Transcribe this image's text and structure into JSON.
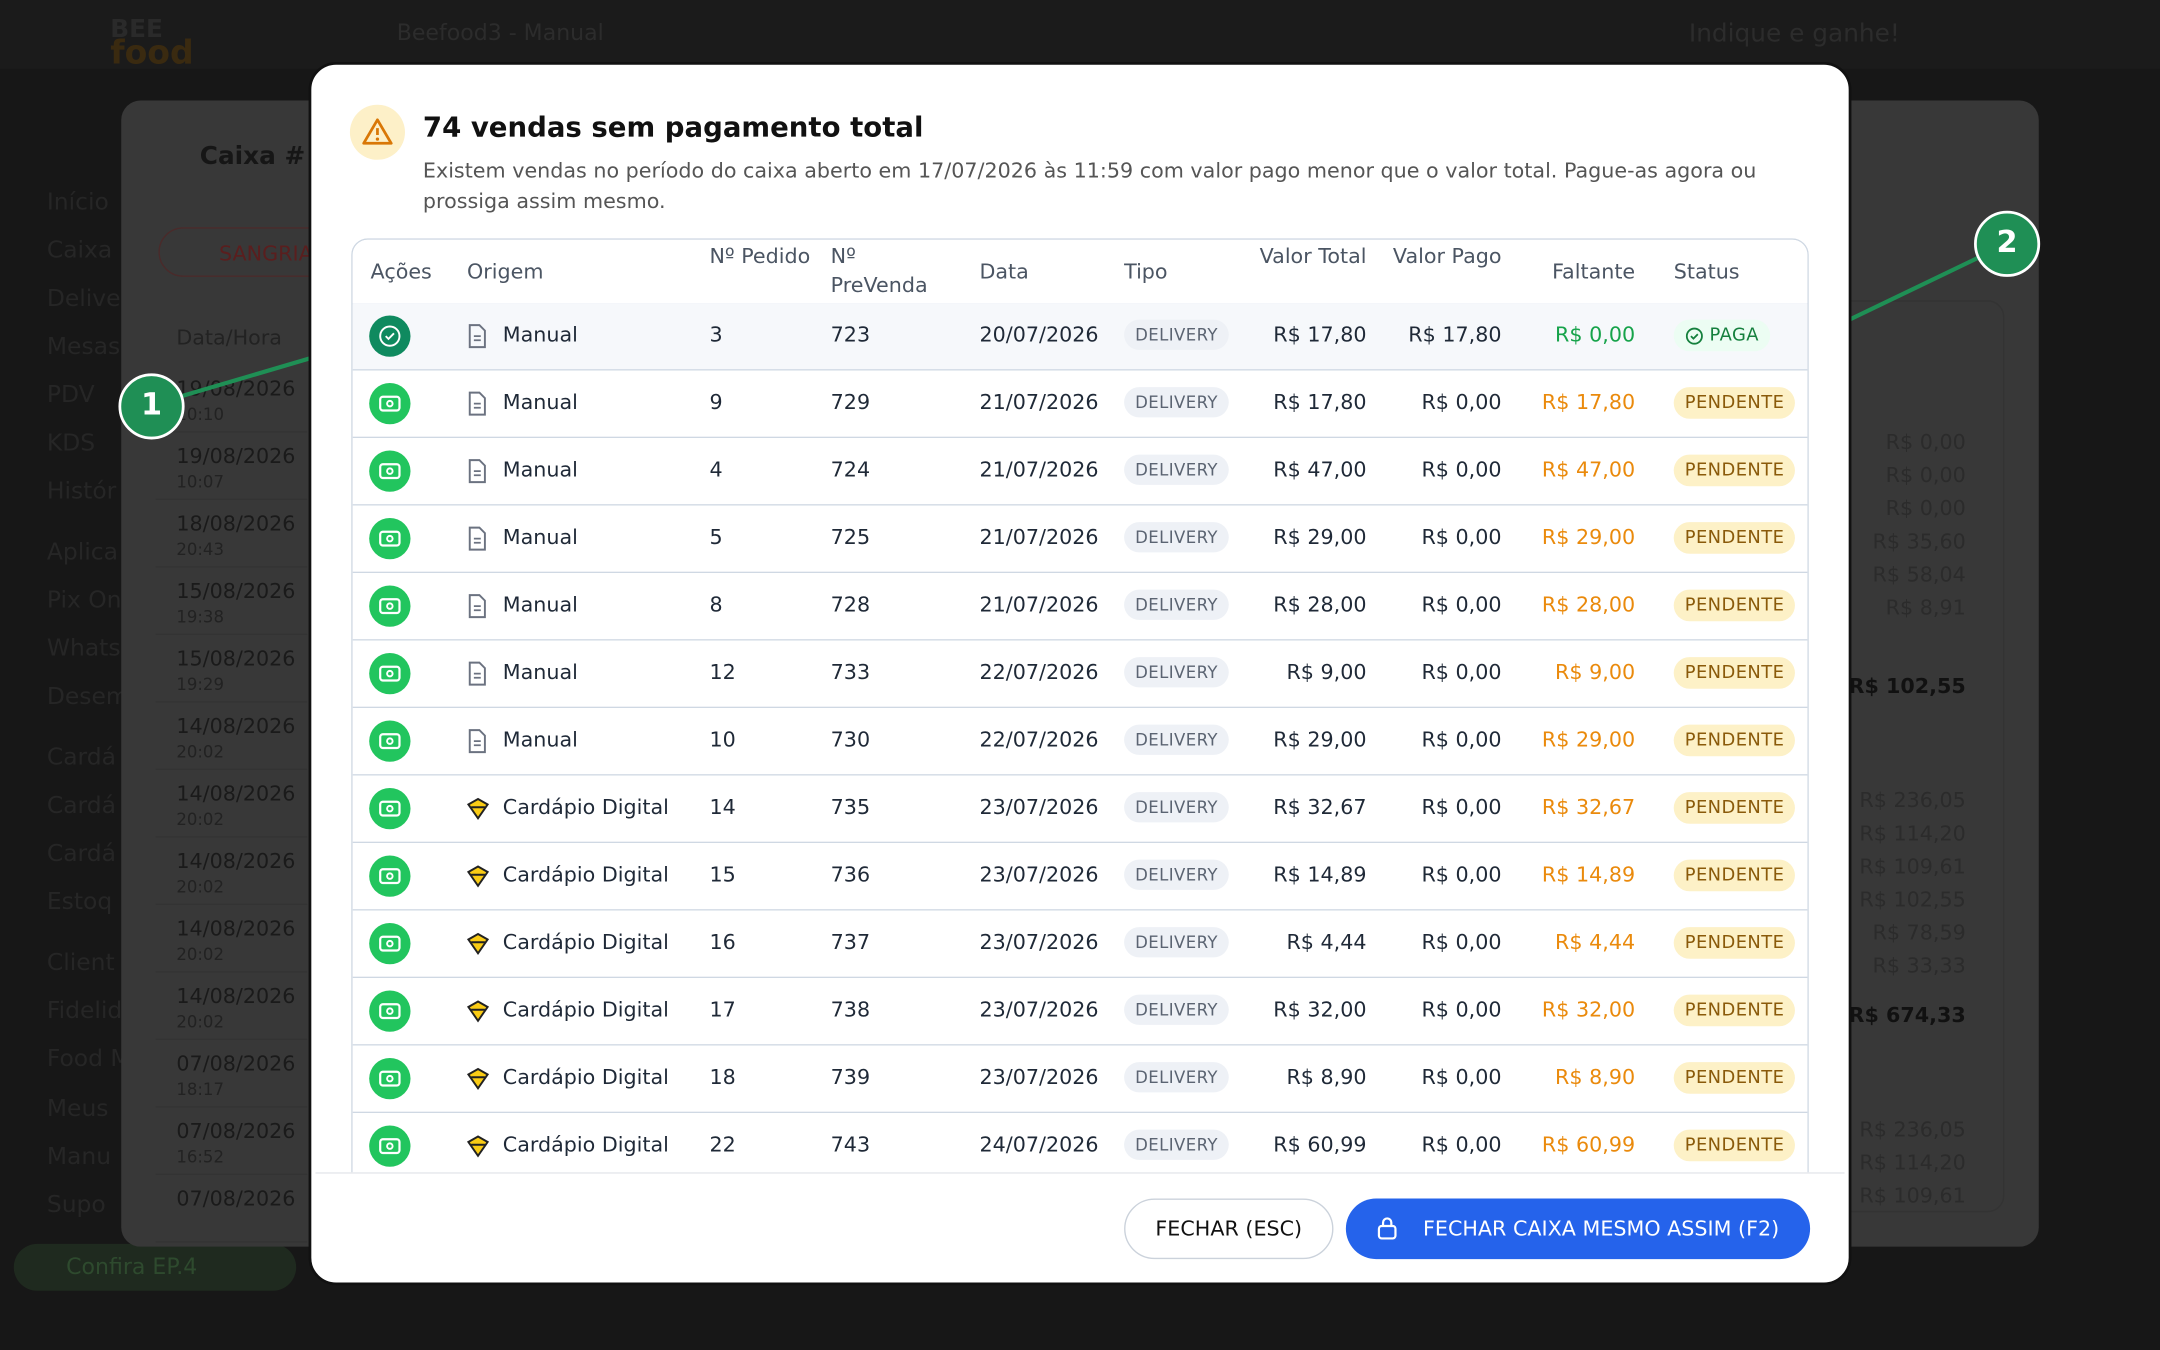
{
  "background": {
    "logo_top": "BEE",
    "logo_bottom": "food",
    "store": "Beefood3 - Manual",
    "referral": "Indique e ganhe!",
    "sidebar": [
      "Início",
      "Caixa",
      "Delive",
      "Mesas",
      "PDV",
      "KDS",
      "Histór",
      "Aplica",
      "Pix On",
      "Whats",
      "Desem",
      "Cardá",
      "Cardá",
      "Cardá",
      "Estoq",
      "Client",
      "Fidelid",
      "Food M",
      "Meus",
      "Manu",
      "Supo"
    ],
    "promo": "Confira EP.4",
    "cash_title": "Caixa # - c",
    "sangria": "SANGRIA",
    "date_header": "Data/Hora",
    "dates": [
      {
        "date": "19/08/2026",
        "time": "10:10"
      },
      {
        "date": "19/08/2026",
        "time": "10:07"
      },
      {
        "date": "18/08/2026",
        "time": "20:43"
      },
      {
        "date": "15/08/2026",
        "time": "19:38"
      },
      {
        "date": "15/08/2026",
        "time": "19:29"
      },
      {
        "date": "14/08/2026",
        "time": "20:02"
      },
      {
        "date": "14/08/2026",
        "time": "20:02"
      },
      {
        "date": "14/08/2026",
        "time": "20:02"
      },
      {
        "date": "14/08/2026",
        "time": "20:02"
      },
      {
        "date": "14/08/2026",
        "time": "20:02"
      },
      {
        "date": "07/08/2026",
        "time": "18:17"
      },
      {
        "date": "07/08/2026",
        "time": "16:52"
      },
      {
        "date": "07/08/2026"
      }
    ],
    "amounts": [
      "R$ 0,00",
      "R$ 0,00",
      "R$ 0,00",
      "R$ 35,60",
      "R$ 58,04",
      "R$ 8,91",
      "R$ 102,55",
      "R$ 236,05",
      "R$ 114,20",
      "R$ 109,61",
      "R$ 102,55",
      "R$ 78,59",
      "R$ 33,33",
      "R$ 674,33",
      "R$ 236,05",
      "R$ 114,20",
      "R$ 109,61"
    ]
  },
  "dialog": {
    "title": "74 vendas sem pagamento total",
    "message": "Existem vendas no período do caixa aberto em 17/07/2026 às 11:59 com valor pago menor que o valor total. Pague-as agora ou prossiga assim mesmo.",
    "table": {
      "headers": [
        "Ações",
        "Origem",
        "Nº Pedido",
        "Nº PreVenda",
        "Data",
        "Tipo",
        "Valor Total",
        "Valor Pago",
        "Faltante",
        "Status"
      ],
      "rows": [
        [
          "Manual",
          "3",
          "723",
          "20/07/2026",
          "DELIVERY",
          "R$ 17,80",
          "R$ 17,80",
          "R$ 0,00",
          "PAGA"
        ],
        [
          "Manual",
          "9",
          "729",
          "21/07/2026",
          "DELIVERY",
          "R$ 17,80",
          "R$ 0,00",
          "R$ 17,80",
          "PENDENTE"
        ],
        [
          "Manual",
          "4",
          "724",
          "21/07/2026",
          "DELIVERY",
          "R$ 47,00",
          "R$ 0,00",
          "R$ 47,00",
          "PENDENTE"
        ],
        [
          "Manual",
          "5",
          "725",
          "21/07/2026",
          "DELIVERY",
          "R$ 29,00",
          "R$ 0,00",
          "R$ 29,00",
          "PENDENTE"
        ],
        [
          "Manual",
          "8",
          "728",
          "21/07/2026",
          "DELIVERY",
          "R$ 28,00",
          "R$ 0,00",
          "R$ 28,00",
          "PENDENTE"
        ],
        [
          "Manual",
          "12",
          "733",
          "22/07/2026",
          "DELIVERY",
          "R$ 9,00",
          "R$ 0,00",
          "R$ 9,00",
          "PENDENTE"
        ],
        [
          "Manual",
          "10",
          "730",
          "22/07/2026",
          "DELIVERY",
          "R$ 29,00",
          "R$ 0,00",
          "R$ 29,00",
          "PENDENTE"
        ],
        [
          "Cardápio Digital",
          "14",
          "735",
          "23/07/2026",
          "DELIVERY",
          "R$ 32,67",
          "R$ 0,00",
          "R$ 32,67",
          "PENDENTE"
        ],
        [
          "Cardápio Digital",
          "15",
          "736",
          "23/07/2026",
          "DELIVERY",
          "R$ 14,89",
          "R$ 0,00",
          "R$ 14,89",
          "PENDENTE"
        ],
        [
          "Cardápio Digital",
          "16",
          "737",
          "23/07/2026",
          "DELIVERY",
          "R$ 4,44",
          "R$ 0,00",
          "R$ 4,44",
          "PENDENTE"
        ],
        [
          "Cardápio Digital",
          "17",
          "738",
          "23/07/2026",
          "DELIVERY",
          "R$ 32,00",
          "R$ 0,00",
          "R$ 32,00",
          "PENDENTE"
        ],
        [
          "Cardápio Digital",
          "18",
          "739",
          "23/07/2026",
          "DELIVERY",
          "R$ 8,90",
          "R$ 0,00",
          "R$ 8,90",
          "PENDENTE"
        ],
        [
          "Cardápio Digital",
          "22",
          "743",
          "24/07/2026",
          "DELIVERY",
          "R$ 60,99",
          "R$ 0,00",
          "R$ 60,99",
          "PENDENTE"
        ]
      ]
    },
    "close_button": "FECHAR (ESC)",
    "confirm_button": "FECHAR CAIXA MESMO ASSIM (F2)"
  },
  "markers": [
    "1",
    "2"
  ]
}
